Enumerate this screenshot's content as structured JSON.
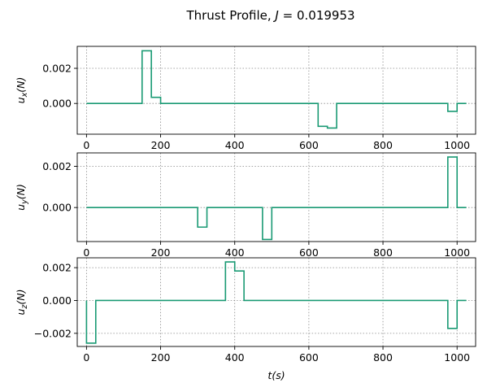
{
  "chart_data": [
    {
      "type": "line",
      "title": "Thrust Profile, J = 0.019953",
      "title_prefix": "Thrust Profile, ",
      "title_var": "J",
      "title_value": " = 0.019953",
      "ylabel_var": "u",
      "ylabel_sub": "x",
      "ylabel_unit": "(N)",
      "xlabel": "",
      "xlim": [
        -25,
        1050
      ],
      "ylim": [
        -0.00175,
        0.00325
      ],
      "xticks": [
        0,
        200,
        400,
        600,
        800,
        1000
      ],
      "yticks": [
        0.0,
        0.002
      ],
      "ytick_labels": [
        "0.000",
        "0.002"
      ],
      "xtick_labels": [
        "0",
        "200",
        "400",
        "600",
        "800",
        "1000"
      ],
      "grid": true,
      "step": true,
      "color": "#1a9a74",
      "series": [
        {
          "x": [
            0,
            150,
            150,
            175,
            175,
            200,
            200,
            625,
            625,
            650,
            650,
            675,
            675,
            975,
            975,
            1000,
            1000,
            1025
          ],
          "values": [
            0,
            0,
            0.003,
            0.003,
            0.00035,
            0.00035,
            0,
            0,
            -0.0013,
            -0.0013,
            -0.0014,
            -0.0014,
            0,
            0,
            -0.00045,
            -0.00045,
            0,
            0
          ]
        }
      ]
    },
    {
      "type": "line",
      "ylabel_var": "u",
      "ylabel_sub": "y",
      "ylabel_unit": "(N)",
      "xlabel": "",
      "xlim": [
        -25,
        1050
      ],
      "ylim": [
        -0.00165,
        0.00265
      ],
      "xticks": [
        0,
        200,
        400,
        600,
        800,
        1000
      ],
      "yticks": [
        0.0,
        0.002
      ],
      "ytick_labels": [
        "0.000",
        "0.002"
      ],
      "xtick_labels": [
        "0",
        "200",
        "400",
        "600",
        "800",
        "1000"
      ],
      "grid": true,
      "step": true,
      "color": "#1a9a74",
      "series": [
        {
          "x": [
            0,
            300,
            300,
            325,
            325,
            475,
            475,
            500,
            500,
            975,
            975,
            1000,
            1000,
            1025
          ],
          "values": [
            0,
            0,
            -0.00095,
            -0.00095,
            0,
            0,
            -0.00155,
            -0.00155,
            0,
            0,
            0.00245,
            0.00245,
            0,
            0
          ]
        }
      ]
    },
    {
      "type": "line",
      "ylabel_var": "u",
      "ylabel_sub": "z",
      "ylabel_unit": "(N)",
      "xlabel_var": "t",
      "xlabel_unit": "(s)",
      "xlim": [
        -25,
        1050
      ],
      "ylim": [
        -0.0028,
        0.0026
      ],
      "xticks": [
        0,
        200,
        400,
        600,
        800,
        1000
      ],
      "yticks": [
        -0.002,
        0.0,
        0.002
      ],
      "ytick_labels": [
        "−0.002",
        "0.000",
        "0.002"
      ],
      "xtick_labels": [
        "0",
        "200",
        "400",
        "600",
        "800",
        "1000"
      ],
      "grid": true,
      "step": true,
      "color": "#1a9a74",
      "series": [
        {
          "x": [
            0,
            0,
            25,
            25,
            375,
            375,
            400,
            400,
            425,
            425,
            975,
            975,
            1000,
            1000,
            1025
          ],
          "values": [
            0,
            -0.0026,
            -0.0026,
            0,
            0,
            0.00235,
            0.00235,
            0.0018,
            0.0018,
            0,
            0,
            -0.0017,
            -0.0017,
            0,
            0
          ]
        }
      ]
    }
  ]
}
